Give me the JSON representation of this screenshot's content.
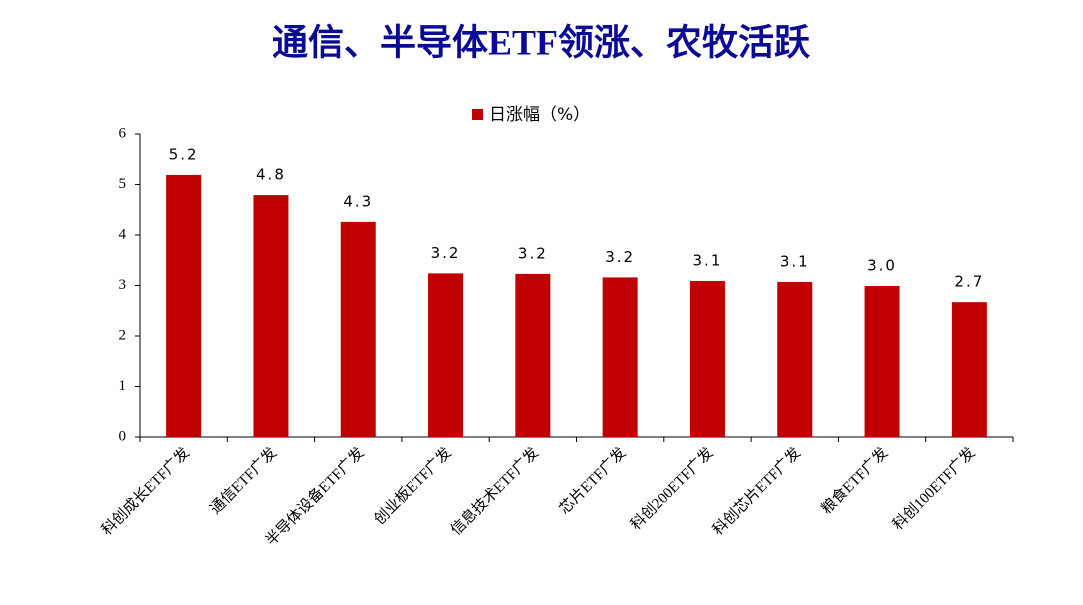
{
  "chart_data": {
    "type": "bar",
    "title": "通信、半导体ETF领涨、农牧活跃",
    "categories": [
      "科创成长ETF广发",
      "通信ETF广发",
      "半导体设备ETF广发",
      "创业板ETF广发",
      "信息技术ETF广发",
      "芯片ETF广发",
      "科创200ETF广发",
      "科创芯片ETF广发",
      "粮食ETF广发",
      "科创100ETF广发"
    ],
    "series": [
      {
        "name": "日涨幅（%）",
        "color": "#c00000",
        "values": [
          5.19,
          4.79,
          4.26,
          3.24,
          3.23,
          3.16,
          3.09,
          3.07,
          2.99,
          2.67
        ],
        "value_labels": [
          "5.2",
          "4.8",
          "4.3",
          "3.2",
          "3.2",
          "3.2",
          "3.1",
          "3.1",
          "3.0",
          "2.7"
        ]
      }
    ],
    "ylim": [
      0,
      6
    ],
    "yticks": [
      0,
      1,
      2,
      3,
      4,
      5,
      6
    ],
    "grid": false
  }
}
